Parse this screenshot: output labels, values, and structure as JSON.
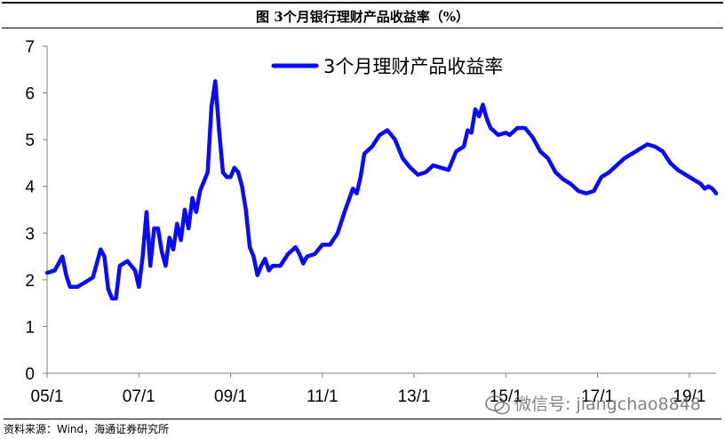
{
  "header": {
    "title": "图 3个月银行理财产品收益率（%）"
  },
  "source": "资料来源：Wind，海通证券研究所",
  "watermark": "微信号: jiangchao8848",
  "colors": {
    "line": "#0a0aff",
    "axis": "#808080"
  },
  "chart_data": {
    "type": "line",
    "title": "",
    "xlabel": "",
    "ylabel": "",
    "ylim": [
      0,
      7
    ],
    "yticks": [
      0,
      1,
      2,
      3,
      4,
      5,
      6,
      7
    ],
    "xticks": [
      "05/1",
      "07/1",
      "09/1",
      "11/1",
      "13/1",
      "15/1",
      "17/1",
      "19/1"
    ],
    "xlim": [
      "2005-01",
      "2019-08"
    ],
    "legend_position": "top",
    "grid": false,
    "series": [
      {
        "name": "3个月理财产品收益率",
        "points": [
          [
            "2005-01",
            2.15
          ],
          [
            "2005-03",
            2.2
          ],
          [
            "2005-05",
            2.5
          ],
          [
            "2005-06",
            2.1
          ],
          [
            "2005-07",
            1.85
          ],
          [
            "2005-09",
            1.85
          ],
          [
            "2005-11",
            1.95
          ],
          [
            "2006-01",
            2.05
          ],
          [
            "2006-03",
            2.65
          ],
          [
            "2006-04",
            2.5
          ],
          [
            "2006-05",
            1.8
          ],
          [
            "2006-06",
            1.6
          ],
          [
            "2006-07",
            1.6
          ],
          [
            "2006-08",
            2.3
          ],
          [
            "2006-10",
            2.4
          ],
          [
            "2006-12",
            2.2
          ],
          [
            "2007-01",
            1.85
          ],
          [
            "2007-02",
            2.5
          ],
          [
            "2007-03",
            3.45
          ],
          [
            "2007-04",
            2.3
          ],
          [
            "2007-05",
            3.1
          ],
          [
            "2007-06",
            3.1
          ],
          [
            "2007-07",
            2.6
          ],
          [
            "2007-08",
            2.3
          ],
          [
            "2007-09",
            2.9
          ],
          [
            "2007-10",
            2.65
          ],
          [
            "2007-11",
            3.2
          ],
          [
            "2007-12",
            2.85
          ],
          [
            "2008-01",
            3.5
          ],
          [
            "2008-02",
            3.1
          ],
          [
            "2008-03",
            3.75
          ],
          [
            "2008-04",
            3.45
          ],
          [
            "2008-05",
            3.9
          ],
          [
            "2008-06",
            4.1
          ],
          [
            "2008-07",
            4.3
          ],
          [
            "2008-08",
            5.7
          ],
          [
            "2008-09",
            6.25
          ],
          [
            "2008-10",
            5.2
          ],
          [
            "2008-11",
            4.3
          ],
          [
            "2008-12",
            4.2
          ],
          [
            "2009-01",
            4.2
          ],
          [
            "2009-02",
            4.4
          ],
          [
            "2009-03",
            4.3
          ],
          [
            "2009-04",
            4.0
          ],
          [
            "2009-05",
            3.5
          ],
          [
            "2009-06",
            2.7
          ],
          [
            "2009-07",
            2.5
          ],
          [
            "2009-08",
            2.1
          ],
          [
            "2009-09",
            2.3
          ],
          [
            "2009-10",
            2.45
          ],
          [
            "2009-11",
            2.2
          ],
          [
            "2009-12",
            2.3
          ],
          [
            "2010-02",
            2.3
          ],
          [
            "2010-04",
            2.55
          ],
          [
            "2010-06",
            2.7
          ],
          [
            "2010-07",
            2.55
          ],
          [
            "2010-08",
            2.35
          ],
          [
            "2010-09",
            2.5
          ],
          [
            "2010-11",
            2.55
          ],
          [
            "2011-01",
            2.75
          ],
          [
            "2011-03",
            2.75
          ],
          [
            "2011-05",
            3.0
          ],
          [
            "2011-07",
            3.5
          ],
          [
            "2011-09",
            3.95
          ],
          [
            "2011-10",
            3.85
          ],
          [
            "2011-11",
            4.2
          ],
          [
            "2011-12",
            4.7
          ],
          [
            "2012-02",
            4.85
          ],
          [
            "2012-04",
            5.1
          ],
          [
            "2012-06",
            5.2
          ],
          [
            "2012-08",
            5.0
          ],
          [
            "2012-10",
            4.6
          ],
          [
            "2012-12",
            4.4
          ],
          [
            "2013-02",
            4.25
          ],
          [
            "2013-04",
            4.3
          ],
          [
            "2013-06",
            4.45
          ],
          [
            "2013-08",
            4.4
          ],
          [
            "2013-10",
            4.35
          ],
          [
            "2013-12",
            4.75
          ],
          [
            "2014-02",
            4.85
          ],
          [
            "2014-03",
            5.2
          ],
          [
            "2014-04",
            5.15
          ],
          [
            "2014-05",
            5.65
          ],
          [
            "2014-06",
            5.5
          ],
          [
            "2014-07",
            5.75
          ],
          [
            "2014-08",
            5.45
          ],
          [
            "2014-09",
            5.25
          ],
          [
            "2014-11",
            5.1
          ],
          [
            "2015-01",
            5.15
          ],
          [
            "2015-02",
            5.1
          ],
          [
            "2015-04",
            5.25
          ],
          [
            "2015-06",
            5.25
          ],
          [
            "2015-08",
            5.05
          ],
          [
            "2015-10",
            4.75
          ],
          [
            "2015-12",
            4.6
          ],
          [
            "2016-02",
            4.3
          ],
          [
            "2016-04",
            4.15
          ],
          [
            "2016-06",
            4.05
          ],
          [
            "2016-08",
            3.9
          ],
          [
            "2016-10",
            3.85
          ],
          [
            "2016-12",
            3.9
          ],
          [
            "2017-02",
            4.2
          ],
          [
            "2017-04",
            4.3
          ],
          [
            "2017-06",
            4.45
          ],
          [
            "2017-08",
            4.6
          ],
          [
            "2017-10",
            4.7
          ],
          [
            "2017-12",
            4.8
          ],
          [
            "2018-02",
            4.9
          ],
          [
            "2018-04",
            4.85
          ],
          [
            "2018-06",
            4.75
          ],
          [
            "2018-08",
            4.5
          ],
          [
            "2018-10",
            4.35
          ],
          [
            "2018-12",
            4.25
          ],
          [
            "2019-02",
            4.15
          ],
          [
            "2019-04",
            4.05
          ],
          [
            "2019-05",
            3.95
          ],
          [
            "2019-06",
            4.0
          ],
          [
            "2019-07",
            3.95
          ],
          [
            "2019-08",
            3.85
          ]
        ]
      }
    ]
  }
}
